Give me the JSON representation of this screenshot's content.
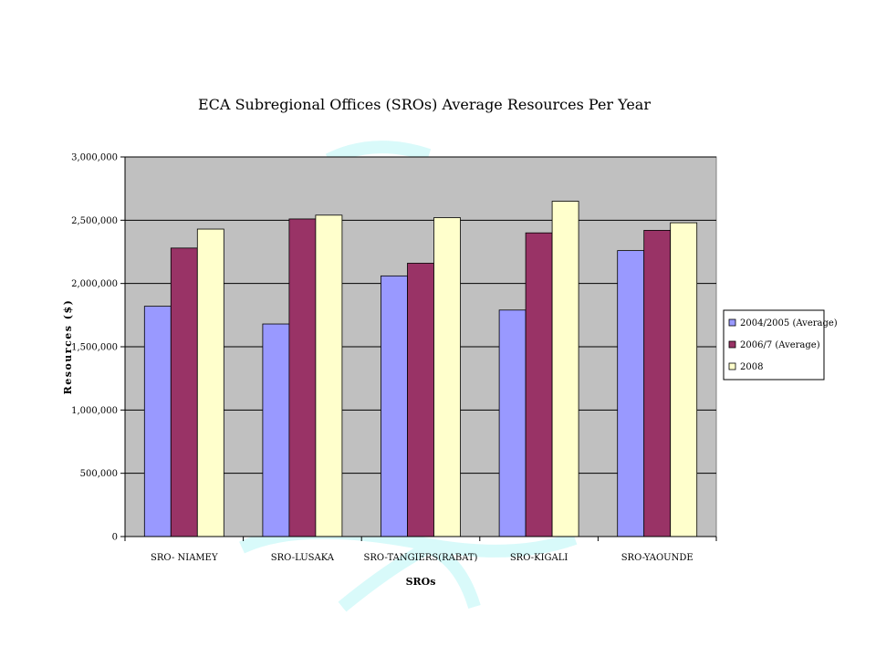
{
  "chart_data": {
    "type": "bar",
    "title": "ECA Subregional Offices (SROs) Average Resources Per Year",
    "xlabel": "SROs",
    "ylabel": "Resources ($)",
    "ylim": [
      0,
      3000000
    ],
    "yticks": [
      "0",
      "500,000",
      "1,000,000",
      "1,500,000",
      "2,000,000",
      "2,500,000",
      "3,000,000"
    ],
    "ytick_values": [
      0,
      500000,
      1000000,
      1500000,
      2000000,
      2500000,
      3000000
    ],
    "categories": [
      "SRO- NIAMEY",
      "SRO-LUSAKA",
      "SRO-TANGIERS(RABAT)",
      "SRO-KIGALI",
      "SRO-YAOUNDE"
    ],
    "series": [
      {
        "name": "2004/2005 (Average)",
        "color": "#9999ff",
        "values": [
          1820000,
          1680000,
          2060000,
          1790000,
          2260000
        ]
      },
      {
        "name": "2006/7 (Average)",
        "color": "#993366",
        "values": [
          2280000,
          2510000,
          2160000,
          2400000,
          2420000
        ]
      },
      {
        "name": "2008",
        "color": "#ffffcc",
        "values": [
          2430000,
          2540000,
          2520000,
          2650000,
          2480000
        ]
      }
    ],
    "grid": true,
    "plot_background": "#c0c0c0",
    "legend_position": "right"
  }
}
